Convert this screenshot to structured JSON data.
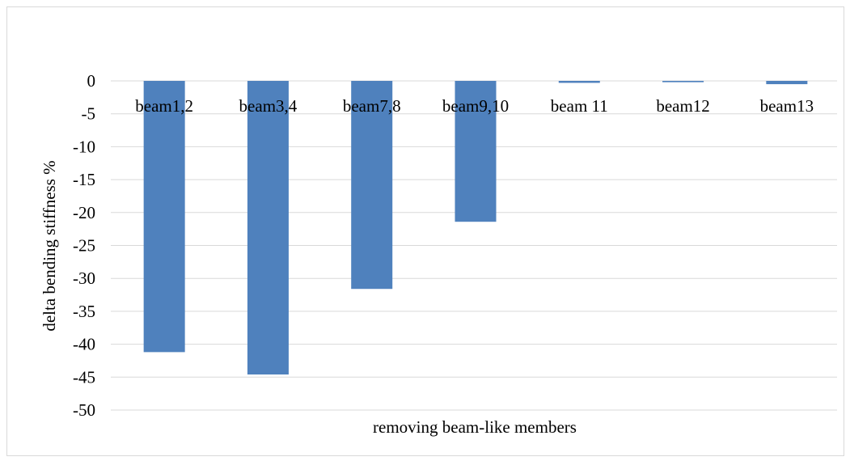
{
  "colors": {
    "bar": "#4f81bd",
    "grid": "#d9d9d9",
    "frame": "#d9d9d9",
    "text": "#000000"
  },
  "chart_data": {
    "type": "bar",
    "title": "",
    "xlabel": "removing beam-like members",
    "ylabel": "delta bending stiffness %",
    "categories": [
      "beam1,2",
      "beam3,4",
      "beam7,8",
      "beam9,10",
      "beam 11",
      "beam12",
      "beam13"
    ],
    "series": [
      {
        "values": [
          -41.2,
          -44.6,
          -31.6,
          -21.4,
          -0.3,
          -0.2,
          -0.5
        ]
      }
    ],
    "ylim": [
      -50,
      0
    ],
    "yticks": [
      0,
      -5,
      -10,
      -15,
      -20,
      -25,
      -30,
      -35,
      -40,
      -45,
      -50
    ],
    "grid": true,
    "legend": "none"
  }
}
